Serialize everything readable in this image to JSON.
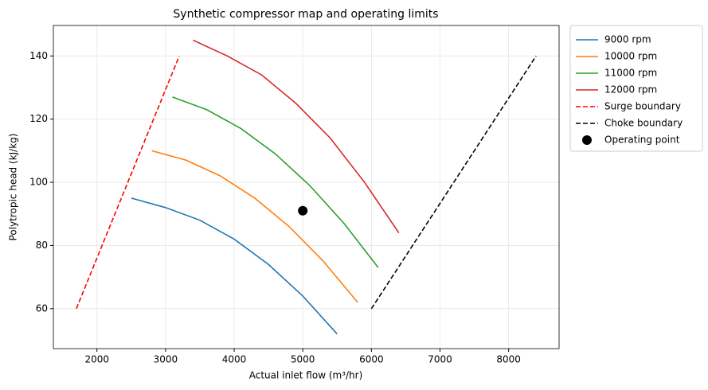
{
  "chart_data": {
    "type": "line",
    "title": "Synthetic compressor map and operating limits",
    "x_label": "Actual inlet flow (m³/hr)",
    "y_label": "Polytropic head (kJ/kg)",
    "xlim": [
      1365,
      8735
    ],
    "ylim": [
      47.35,
      149.65
    ],
    "xticks": [
      2000,
      3000,
      4000,
      5000,
      6000,
      7000,
      8000
    ],
    "yticks": [
      60,
      80,
      100,
      120,
      140
    ],
    "grid": true,
    "legend": "outside upper right",
    "series": [
      {
        "name": "9000 rpm",
        "color": "#1f77b4",
        "style": "solid",
        "x": [
          2500,
          3000,
          3500,
          4000,
          4500,
          5000,
          5500
        ],
        "values": [
          95,
          92,
          88,
          82,
          74,
          64,
          52
        ]
      },
      {
        "name": "10000 rpm",
        "color": "#ff7f0e",
        "style": "solid",
        "x": [
          2800,
          3300,
          3800,
          4300,
          4800,
          5300,
          5800
        ],
        "values": [
          110,
          107,
          102,
          95,
          86,
          75,
          62
        ]
      },
      {
        "name": "11000 rpm",
        "color": "#2ca02c",
        "style": "solid",
        "x": [
          3100,
          3600,
          4100,
          4600,
          5100,
          5600,
          6100
        ],
        "values": [
          127,
          123,
          117,
          109,
          99,
          87,
          73
        ]
      },
      {
        "name": "12000 rpm",
        "color": "#d62728",
        "style": "solid",
        "x": [
          3400,
          3900,
          4400,
          4900,
          5400,
          5900,
          6400
        ],
        "values": [
          145,
          140,
          134,
          125,
          114,
          100,
          84
        ]
      },
      {
        "name": "Surge boundary",
        "color": "#ff0000",
        "style": "dashed",
        "x": [
          1700,
          3200
        ],
        "values": [
          60,
          140
        ]
      },
      {
        "name": "Choke boundary",
        "color": "#000000",
        "style": "dashed",
        "x": [
          6000,
          8400
        ],
        "values": [
          60,
          140
        ]
      },
      {
        "name": "Operating point",
        "color": "#000000",
        "style": "point",
        "x": [
          5000
        ],
        "values": [
          91
        ]
      }
    ]
  }
}
